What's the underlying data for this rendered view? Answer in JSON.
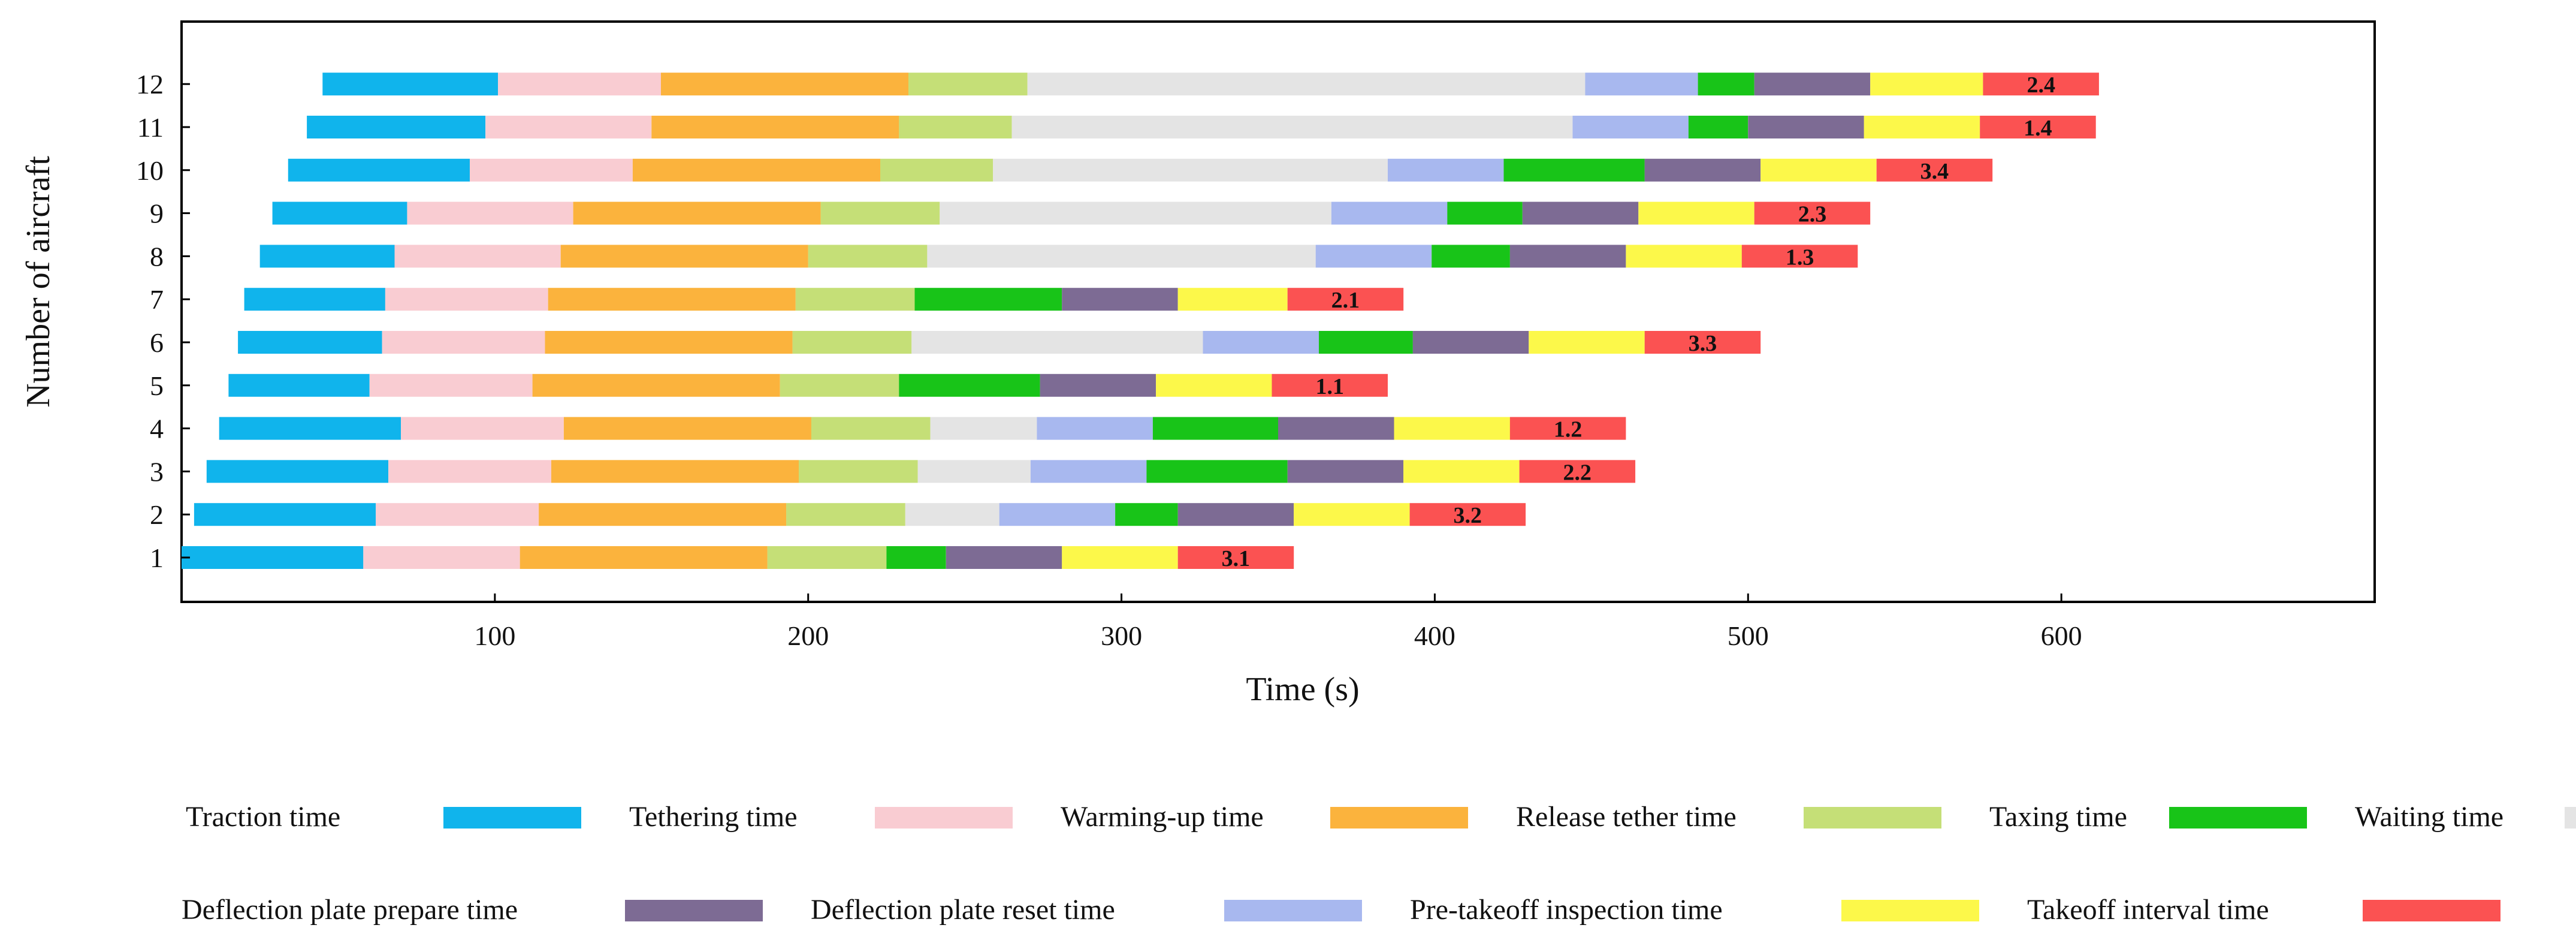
{
  "chart_data": {
    "type": "bar",
    "orientation": "horizontal-stacked-gantt",
    "title": "",
    "xlabel": "Time (s)",
    "ylabel": "Number of aircraft",
    "xlim": [
      0,
      700
    ],
    "ylim": [
      0.5,
      13
    ],
    "xticks": [
      100,
      200,
      300,
      400,
      500,
      600
    ],
    "yticks": [
      1,
      2,
      3,
      4,
      5,
      6,
      7,
      8,
      9,
      10,
      11,
      12
    ],
    "grid": false,
    "legend_position": "bottom",
    "categories": [
      {
        "key": "traction",
        "name": "Traction time",
        "color": "#10b4ec"
      },
      {
        "key": "tethering",
        "name": "Tethering time",
        "color": "#f9ccd2"
      },
      {
        "key": "warming",
        "name": "Warming-up time",
        "color": "#fbb33d"
      },
      {
        "key": "release",
        "name": "Release tether time",
        "color": "#c5df77"
      },
      {
        "key": "taxing",
        "name": "Taxing time",
        "color": "#18c418"
      },
      {
        "key": "waiting",
        "name": "Waiting time",
        "color": "#e4e4e4"
      },
      {
        "key": "defl_prepare",
        "name": "Deflection plate prepare time",
        "color": "#7d6b94"
      },
      {
        "key": "defl_reset",
        "name": "Deflection plate reset time",
        "color": "#a8b8ef"
      },
      {
        "key": "inspection",
        "name": "Pre-takeoff inspection time",
        "color": "#fcf84a"
      },
      {
        "key": "interval",
        "name": "Takeoff interval time",
        "color": "#fb5252"
      }
    ],
    "aircraft": [
      {
        "id": 1,
        "label": "3.1",
        "segments": [
          [
            "traction",
            0,
            58
          ],
          [
            "tethering",
            58,
            108
          ],
          [
            "warming",
            108,
            187
          ],
          [
            "release",
            187,
            225
          ],
          [
            "taxing",
            225,
            244
          ],
          [
            "defl_prepare",
            244,
            281
          ],
          [
            "inspection",
            281,
            318
          ],
          [
            "interval",
            318,
            355
          ]
        ]
      },
      {
        "id": 2,
        "label": "3.2",
        "segments": [
          [
            "traction",
            4,
            62
          ],
          [
            "tethering",
            62,
            114
          ],
          [
            "warming",
            114,
            193
          ],
          [
            "release",
            193,
            231
          ],
          [
            "waiting",
            231,
            261
          ],
          [
            "defl_reset",
            261,
            298
          ],
          [
            "taxing",
            298,
            318
          ],
          [
            "defl_prepare",
            318,
            355
          ],
          [
            "inspection",
            355,
            392
          ],
          [
            "interval",
            392,
            429
          ]
        ]
      },
      {
        "id": 3,
        "label": "2.2",
        "segments": [
          [
            "traction",
            8,
            66
          ],
          [
            "tethering",
            66,
            118
          ],
          [
            "warming",
            118,
            197
          ],
          [
            "release",
            197,
            235
          ],
          [
            "waiting",
            235,
            271
          ],
          [
            "defl_reset",
            271,
            308
          ],
          [
            "taxing",
            308,
            353
          ],
          [
            "defl_prepare",
            353,
            390
          ],
          [
            "inspection",
            390,
            427
          ],
          [
            "interval",
            427,
            464
          ]
        ]
      },
      {
        "id": 4,
        "label": "1.2",
        "segments": [
          [
            "traction",
            12,
            70
          ],
          [
            "tethering",
            70,
            122
          ],
          [
            "warming",
            122,
            201
          ],
          [
            "release",
            201,
            239
          ],
          [
            "waiting",
            239,
            273
          ],
          [
            "defl_reset",
            273,
            310
          ],
          [
            "taxing",
            310,
            350
          ],
          [
            "defl_prepare",
            350,
            387
          ],
          [
            "inspection",
            387,
            424
          ],
          [
            "interval",
            424,
            461
          ]
        ]
      },
      {
        "id": 5,
        "label": "1.1",
        "segments": [
          [
            "traction",
            15,
            60
          ],
          [
            "tethering",
            60,
            112
          ],
          [
            "warming",
            112,
            191
          ],
          [
            "release",
            191,
            229
          ],
          [
            "taxing",
            229,
            274
          ],
          [
            "defl_prepare",
            274,
            311
          ],
          [
            "inspection",
            311,
            348
          ],
          [
            "interval",
            348,
            385
          ]
        ]
      },
      {
        "id": 6,
        "label": "3.3",
        "segments": [
          [
            "traction",
            18,
            64
          ],
          [
            "tethering",
            64,
            116
          ],
          [
            "warming",
            116,
            195
          ],
          [
            "release",
            195,
            233
          ],
          [
            "waiting",
            233,
            326
          ],
          [
            "defl_reset",
            326,
            363
          ],
          [
            "taxing",
            363,
            393
          ],
          [
            "defl_prepare",
            393,
            430
          ],
          [
            "inspection",
            430,
            467
          ],
          [
            "interval",
            467,
            504
          ]
        ]
      },
      {
        "id": 7,
        "label": "2.1",
        "segments": [
          [
            "traction",
            20,
            65
          ],
          [
            "tethering",
            65,
            117
          ],
          [
            "warming",
            117,
            196
          ],
          [
            "release",
            196,
            234
          ],
          [
            "taxing",
            234,
            281
          ],
          [
            "defl_prepare",
            281,
            318
          ],
          [
            "inspection",
            318,
            353
          ],
          [
            "interval",
            353,
            390
          ]
        ]
      },
      {
        "id": 8,
        "label": "1.3",
        "segments": [
          [
            "traction",
            25,
            68
          ],
          [
            "tethering",
            68,
            121
          ],
          [
            "warming",
            121,
            200
          ],
          [
            "release",
            200,
            238
          ],
          [
            "waiting",
            238,
            362
          ],
          [
            "defl_reset",
            362,
            399
          ],
          [
            "taxing",
            399,
            424
          ],
          [
            "defl_prepare",
            424,
            461
          ],
          [
            "inspection",
            461,
            498
          ],
          [
            "interval",
            498,
            535
          ]
        ]
      },
      {
        "id": 9,
        "label": "2.3",
        "segments": [
          [
            "traction",
            29,
            72
          ],
          [
            "tethering",
            72,
            125
          ],
          [
            "warming",
            125,
            204
          ],
          [
            "release",
            204,
            242
          ],
          [
            "waiting",
            242,
            367
          ],
          [
            "defl_reset",
            367,
            404
          ],
          [
            "taxing",
            404,
            428
          ],
          [
            "defl_prepare",
            428,
            465
          ],
          [
            "inspection",
            465,
            502
          ],
          [
            "interval",
            502,
            539
          ]
        ]
      },
      {
        "id": 10,
        "label": "3.4",
        "segments": [
          [
            "traction",
            34,
            92
          ],
          [
            "tethering",
            92,
            144
          ],
          [
            "warming",
            144,
            223
          ],
          [
            "release",
            223,
            259
          ],
          [
            "waiting",
            259,
            385
          ],
          [
            "defl_reset",
            385,
            422
          ],
          [
            "taxing",
            422,
            467
          ],
          [
            "defl_prepare",
            467,
            504
          ],
          [
            "inspection",
            504,
            541
          ],
          [
            "interval",
            541,
            578
          ]
        ]
      },
      {
        "id": 11,
        "label": "1.4",
        "segments": [
          [
            "traction",
            40,
            97
          ],
          [
            "tethering",
            97,
            150
          ],
          [
            "warming",
            150,
            229
          ],
          [
            "release",
            229,
            265
          ],
          [
            "waiting",
            265,
            444
          ],
          [
            "defl_reset",
            444,
            481
          ],
          [
            "taxing",
            481,
            500
          ],
          [
            "defl_prepare",
            500,
            537
          ],
          [
            "inspection",
            537,
            574
          ],
          [
            "interval",
            574,
            611
          ]
        ]
      },
      {
        "id": 12,
        "label": "2.4",
        "segments": [
          [
            "traction",
            45,
            101
          ],
          [
            "tethering",
            101,
            153
          ],
          [
            "warming",
            153,
            232
          ],
          [
            "release",
            232,
            270
          ],
          [
            "waiting",
            270,
            448
          ],
          [
            "defl_reset",
            448,
            484
          ],
          [
            "taxing",
            484,
            502
          ],
          [
            "defl_prepare",
            502,
            539
          ],
          [
            "inspection",
            539,
            575
          ],
          [
            "interval",
            575,
            612
          ]
        ]
      }
    ]
  },
  "legend": {
    "rows": [
      [
        "traction",
        "tethering",
        "warming",
        "release",
        "taxing",
        "waiting"
      ],
      [
        "defl_prepare",
        "defl_reset",
        "inspection",
        "interval"
      ]
    ]
  }
}
